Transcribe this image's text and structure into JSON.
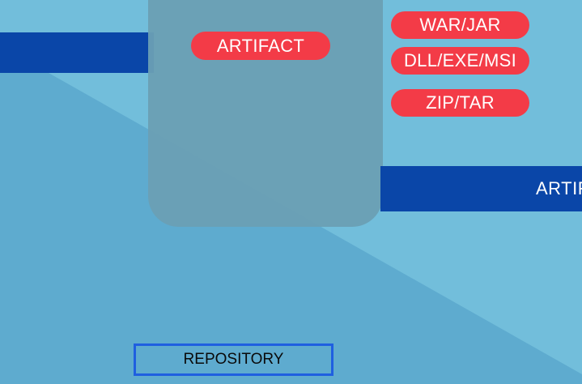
{
  "colors": {
    "background_light": "#72bedb",
    "background_diagonal": "#5eabcf",
    "bar_blue": "#0a46a8",
    "artifact_box": "#6a9fb4",
    "pill_red": "#f33b47",
    "repository_border": "#1f5fe0"
  },
  "diagram": {
    "artifact_label": "ARTIFACT",
    "formats": [
      "WAR/JAR",
      "DLL/EXE/MSI",
      "ZIP/TAR"
    ],
    "right_bar_label": "ARTIF",
    "repository_label": "REPOSITORY"
  }
}
